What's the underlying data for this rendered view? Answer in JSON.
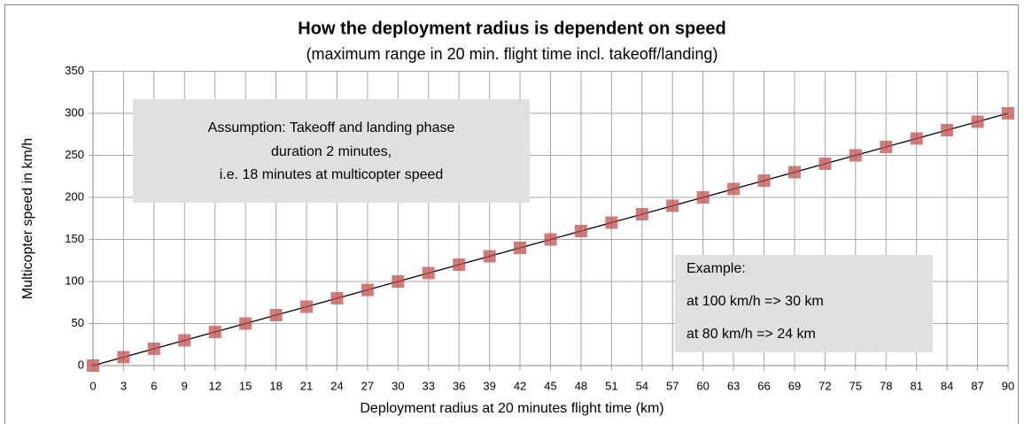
{
  "chart_data": {
    "type": "line",
    "title": "How the deployment radius is dependent on speed",
    "subtitle": "(maximum range in 20 min. flight time incl. takeoff/landing)",
    "x_label": "Deployment radius at 20 minutes flight time (km)",
    "y_label": "Multicopter speed in km/h",
    "annotations": [
      {
        "lines": [
          "Assumption: Takeoff and landing phase",
          "duration 2 minutes,",
          "i.e. 18 minutes at multicopter speed"
        ]
      },
      {
        "lines": [
          "Example:",
          "at 100 km/h => 30 km",
          "at 80 km/h => 24 km"
        ]
      }
    ],
    "x": [
      0,
      3,
      6,
      9,
      12,
      15,
      18,
      21,
      24,
      27,
      30,
      33,
      36,
      39,
      42,
      45,
      48,
      51,
      54,
      57,
      60,
      63,
      66,
      69,
      72,
      75,
      78,
      81,
      84,
      87,
      90
    ],
    "series": [
      {
        "name": "Multicopter speed",
        "color": "#c0504d",
        "line_color": "#000000",
        "values": [
          0,
          10,
          20,
          30,
          40,
          50,
          60,
          70,
          80,
          90,
          100,
          110,
          120,
          130,
          140,
          150,
          160,
          170,
          180,
          190,
          200,
          210,
          220,
          230,
          240,
          250,
          260,
          270,
          280,
          290,
          300
        ]
      }
    ],
    "xlim": [
      0,
      90
    ],
    "xticks": [
      0,
      3,
      6,
      9,
      12,
      15,
      18,
      21,
      24,
      27,
      30,
      33,
      36,
      39,
      42,
      45,
      48,
      51,
      54,
      57,
      60,
      63,
      66,
      69,
      72,
      75,
      78,
      81,
      84,
      87,
      90
    ],
    "ylim": [
      0,
      350
    ],
    "yticks": [
      0,
      50,
      100,
      150,
      200,
      250,
      300,
      350
    ],
    "grid": true
  }
}
